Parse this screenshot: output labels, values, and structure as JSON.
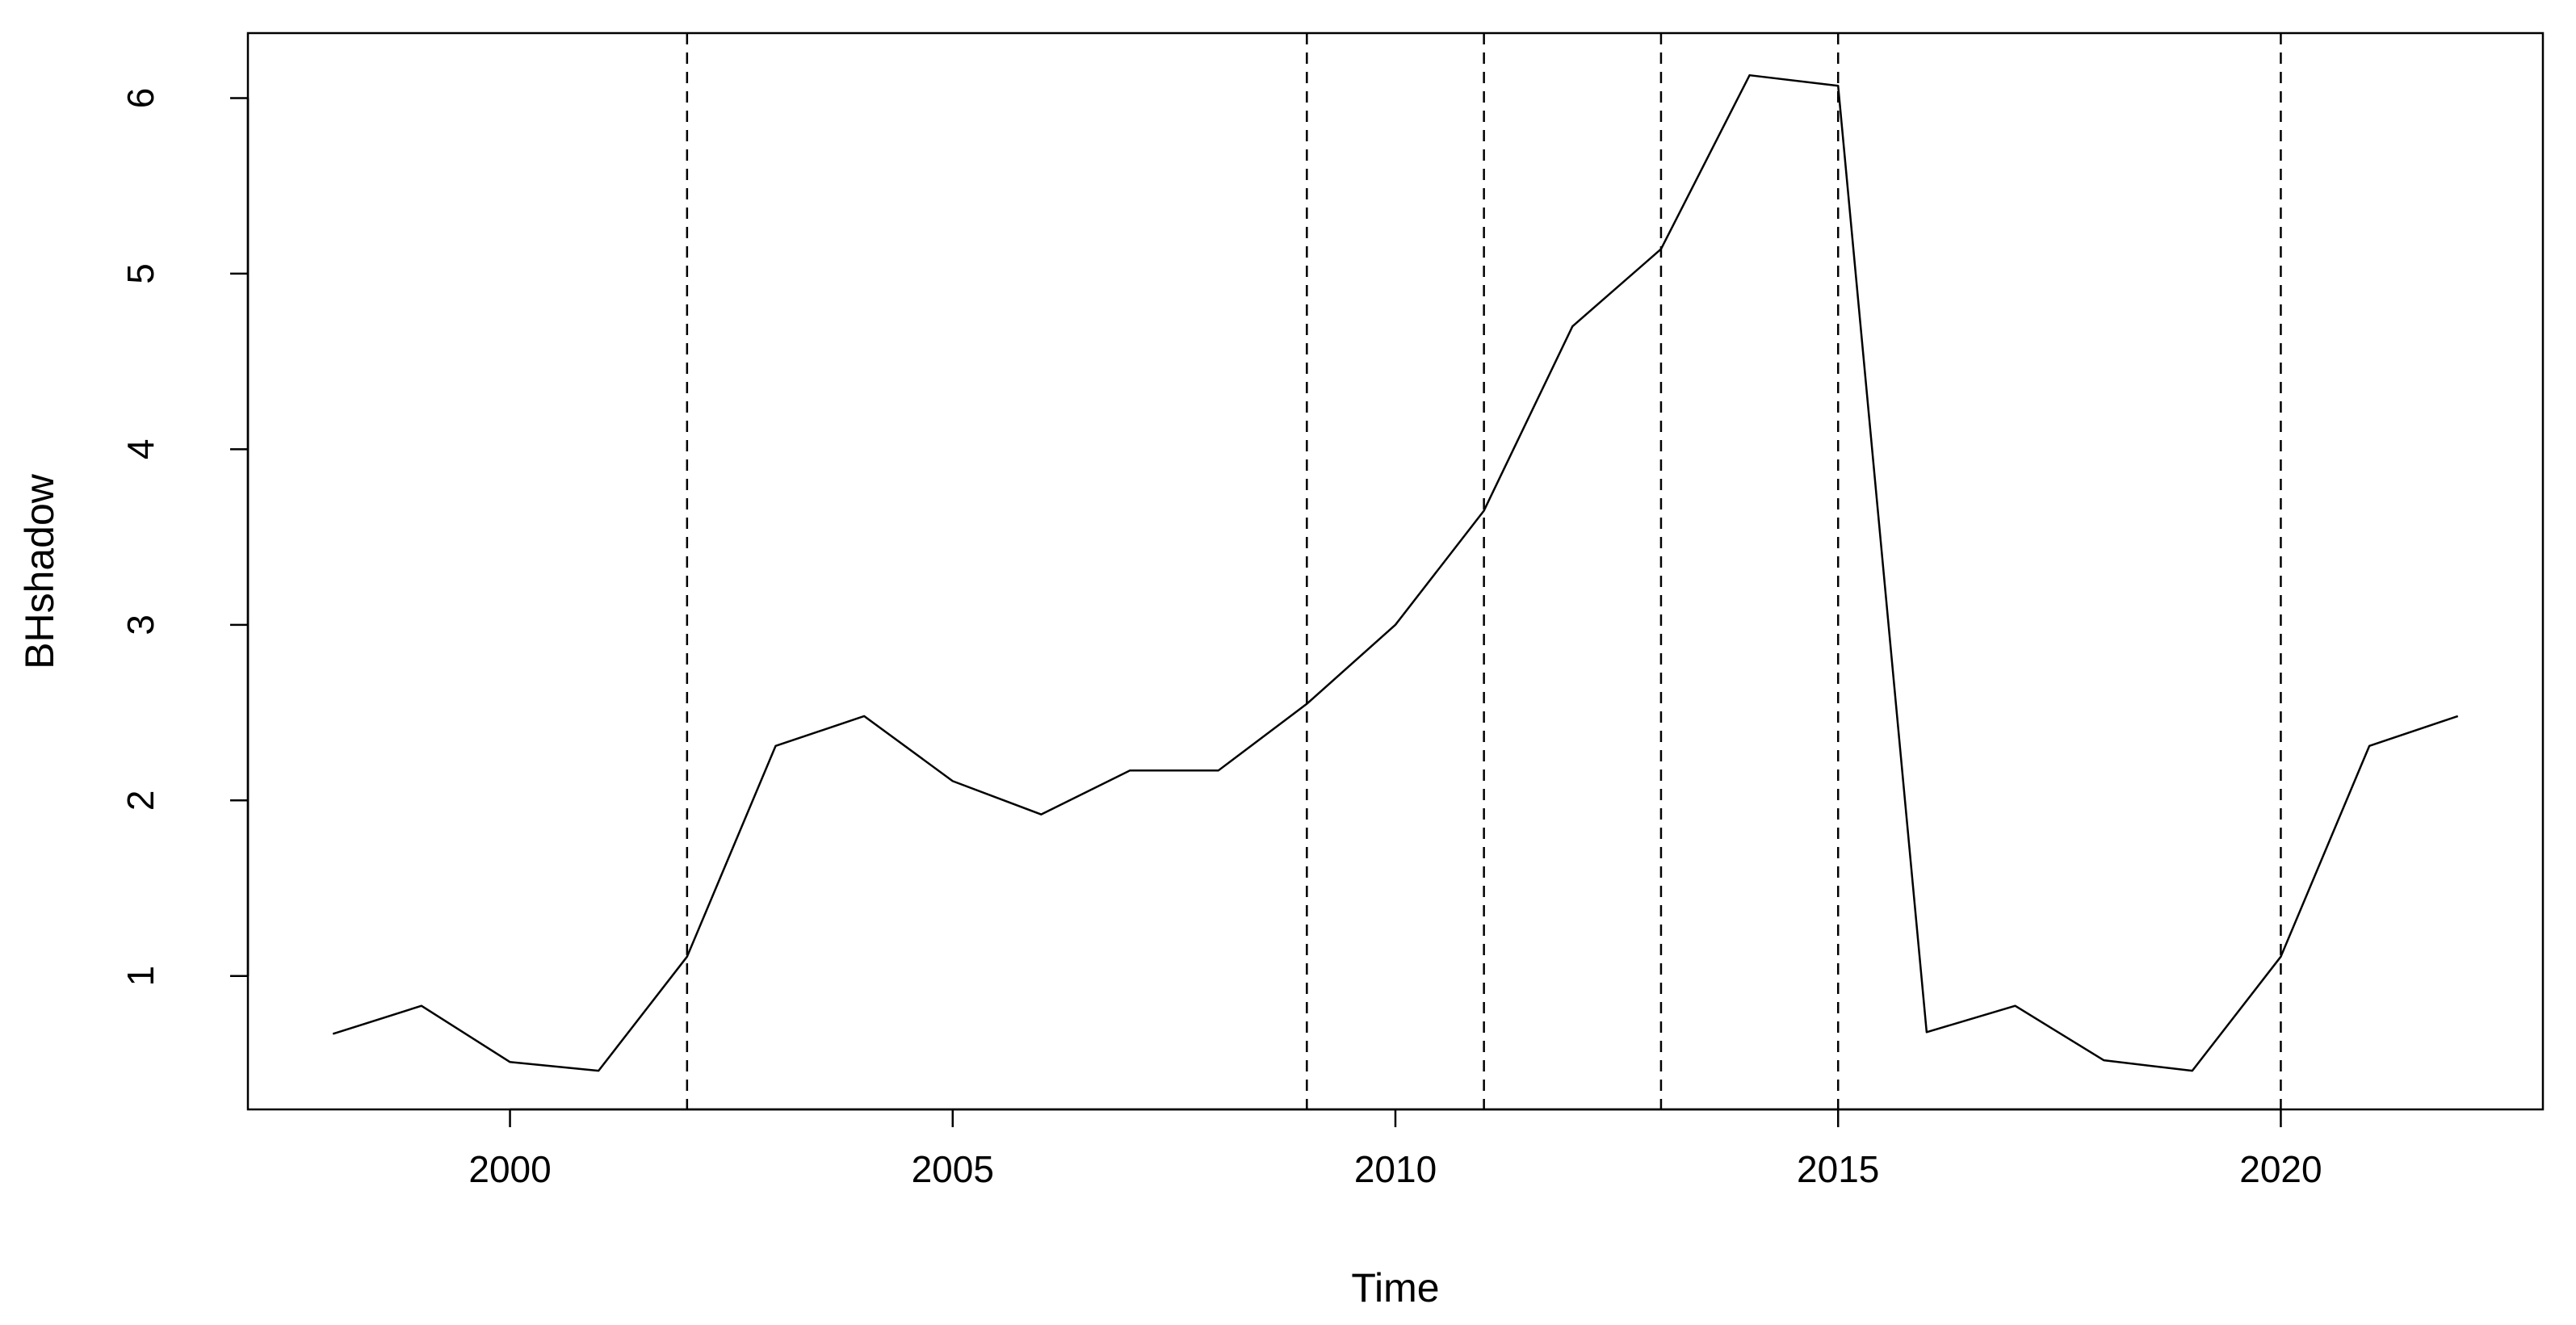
{
  "chart_data": {
    "type": "line",
    "xlabel": "Time",
    "ylabel": "BHshadow",
    "x": [
      1998,
      1999,
      2000,
      2001,
      2002,
      2003,
      2004,
      2005,
      2006,
      2007,
      2008,
      2009,
      2010,
      2011,
      2012,
      2013,
      2014,
      2015,
      2016,
      2017,
      2018,
      2019,
      2020,
      2021,
      2022
    ],
    "values": [
      0.67,
      0.83,
      0.51,
      0.46,
      1.11,
      2.31,
      2.48,
      2.11,
      1.92,
      2.17,
      2.17,
      2.55,
      3.0,
      3.65,
      4.7,
      5.14,
      6.13,
      6.07,
      0.68,
      0.83,
      0.52,
      0.46,
      1.11,
      2.31,
      2.48
    ],
    "color": "#000000",
    "vlines": [
      2002,
      2009,
      2011,
      2013,
      2015,
      2020
    ],
    "xlim": [
      1997.04,
      2022.96
    ],
    "xticks": [
      2000,
      2005,
      2010,
      2015,
      2020
    ],
    "ylim": [
      0.24,
      6.37
    ],
    "yticks": [
      1,
      2,
      3,
      4,
      5,
      6
    ],
    "grid": false
  }
}
